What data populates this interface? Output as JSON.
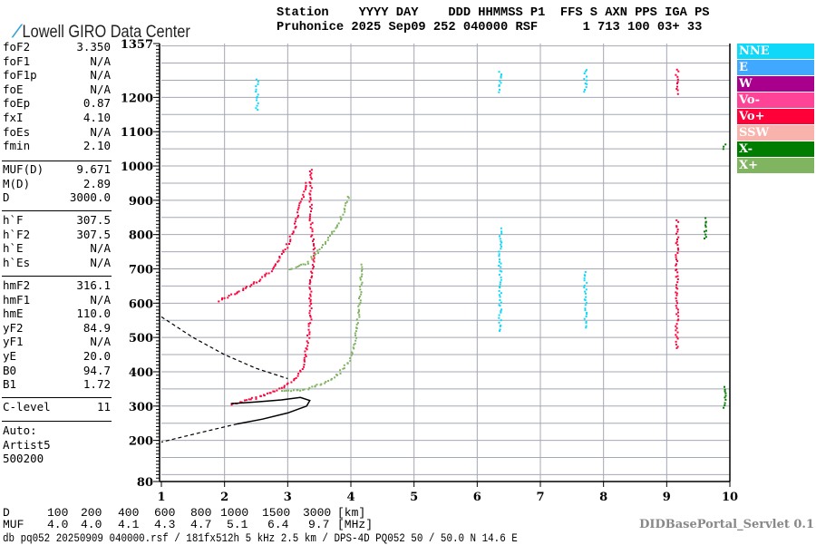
{
  "header": {
    "logo_text": "Lowell GIRO Data Center",
    "line1": "Station    YYYY DAY    DDD HHMMSS P1  FFS S AXN PPS IGA PS",
    "line2": "Pruhonice 2025 Sep09 252 040000 RSF      1 713 100 03+ 33"
  },
  "params": {
    "group1": [
      {
        "k": "foF2",
        "v": "3.350"
      },
      {
        "k": "foF1",
        "v": "N/A"
      },
      {
        "k": "foF1p",
        "v": "N/A"
      },
      {
        "k": "foE",
        "v": "N/A"
      },
      {
        "k": "foEp",
        "v": "0.87"
      },
      {
        "k": "fxI",
        "v": "4.10"
      },
      {
        "k": "foEs",
        "v": "N/A"
      },
      {
        "k": "fmin",
        "v": "2.10"
      }
    ],
    "group2": [
      {
        "k": "MUF(D)",
        "v": "9.671"
      },
      {
        "k": "M(D)",
        "v": "2.89"
      },
      {
        "k": "D",
        "v": "3000.0"
      }
    ],
    "group3": [
      {
        "k": "h`F",
        "v": "307.5"
      },
      {
        "k": "h`F2",
        "v": "307.5"
      },
      {
        "k": "h`E",
        "v": "N/A"
      },
      {
        "k": "h`Es",
        "v": "N/A"
      }
    ],
    "group4": [
      {
        "k": "hmF2",
        "v": "316.1"
      },
      {
        "k": "hmF1",
        "v": "N/A"
      },
      {
        "k": "hmE",
        "v": "110.0"
      },
      {
        "k": "yF2",
        "v": "84.9"
      },
      {
        "k": "yF1",
        "v": "N/A"
      },
      {
        "k": "yE",
        "v": "20.0"
      },
      {
        "k": "B0",
        "v": "94.7"
      },
      {
        "k": "B1",
        "v": "1.72"
      }
    ],
    "group5": [
      {
        "k": "C-level",
        "v": "11"
      }
    ],
    "auto": [
      "Auto:",
      "Artist5",
      "500200"
    ]
  },
  "legend": [
    {
      "label": "NNE",
      "color": "#10d8f8"
    },
    {
      "label": "E",
      "color": "#40a8ff"
    },
    {
      "label": "W",
      "color": "#a8008c"
    },
    {
      "label": "Vo-",
      "color": "#ff4498"
    },
    {
      "label": "Vo+",
      "color": "#ff0038"
    },
    {
      "label": "SSW",
      "color": "#f8b4ac"
    },
    {
      "label": "X-",
      "color": "#007c00"
    },
    {
      "label": "X+",
      "color": "#80b460"
    }
  ],
  "muf_table": {
    "d_label": "D",
    "d_values": [
      "100",
      "200",
      "400",
      "600",
      "800",
      "1000",
      "1500",
      "3000"
    ],
    "d_unit": "[km]",
    "muf_label": "MUF",
    "muf_values": [
      "4.0",
      "4.0",
      "4.1",
      "4.3",
      "4.7",
      "5.1",
      "6.4",
      "9.7"
    ],
    "muf_unit": "[MHz]"
  },
  "footer": {
    "servlet": "DIDBasePortal_Servlet 0.1",
    "info": "db pq052 20250909 040000.rsf / 181fx512h 5 kHz 2.5 km / DPS-4D PQ052 50 / 50.0 N 14.6 E"
  },
  "chart_data": {
    "type": "scatter",
    "xlabel": "",
    "ylabel": "",
    "xlim": [
      1,
      10
    ],
    "ylim": [
      80,
      1357
    ],
    "xticks": [
      "1",
      "2",
      "3",
      "4",
      "5",
      "6",
      "7",
      "8",
      "9",
      "10"
    ],
    "yticks": [
      "80",
      "200",
      "300",
      "400",
      "500",
      "600",
      "700",
      "800",
      "900",
      "1000",
      "1100",
      "1200",
      "1357"
    ],
    "grid": true,
    "legend_position": "right",
    "series": [
      {
        "name": "Vo+",
        "color": "#ff0038",
        "traces": [
          [
            [
              2.1,
              307
            ],
            [
              2.4,
              322
            ],
            [
              2.7,
              340
            ],
            [
              2.95,
              360
            ],
            [
              3.15,
              390
            ],
            [
              3.25,
              430
            ],
            [
              3.3,
              480
            ],
            [
              3.35,
              560
            ],
            [
              3.35,
              650
            ],
            [
              3.4,
              750
            ],
            [
              3.35,
              850
            ],
            [
              3.35,
              950
            ],
            [
              3.35,
              1000
            ]
          ],
          [
            [
              1.9,
              610
            ],
            [
              2.2,
              635
            ],
            [
              2.5,
              665
            ],
            [
              2.75,
              700
            ],
            [
              2.95,
              760
            ],
            [
              3.1,
              820
            ],
            [
              3.2,
              900
            ],
            [
              3.3,
              960
            ]
          ],
          [
            [
              9.15,
              470
            ],
            [
              9.15,
              850
            ]
          ],
          [
            [
              9.15,
              1215
            ],
            [
              9.15,
              1290
            ]
          ]
        ]
      },
      {
        "name": "X+",
        "color": "#80b460",
        "traces": [
          [
            [
              2.9,
              345
            ],
            [
              3.2,
              348
            ],
            [
              3.5,
              365
            ],
            [
              3.75,
              390
            ],
            [
              3.95,
              430
            ],
            [
              4.05,
              480
            ],
            [
              4.1,
              560
            ],
            [
              4.15,
              650
            ],
            [
              4.15,
              720
            ]
          ],
          [
            [
              3.0,
              700
            ],
            [
              3.3,
              720
            ],
            [
              3.55,
              770
            ],
            [
              3.75,
              820
            ],
            [
              3.9,
              880
            ],
            [
              3.95,
              920
            ]
          ]
        ]
      },
      {
        "name": "NNE",
        "color": "#10d8f8",
        "traces": [
          [
            [
              6.35,
              520
            ],
            [
              6.35,
              825
            ]
          ],
          [
            [
              6.35,
              1220
            ],
            [
              6.35,
              1285
            ]
          ],
          [
            [
              2.5,
              1165
            ],
            [
              2.5,
              1260
            ]
          ],
          [
            [
              7.7,
              1220
            ],
            [
              7.7,
              1290
            ]
          ],
          [
            [
              7.7,
              530
            ],
            [
              7.7,
              700
            ]
          ]
        ]
      },
      {
        "name": "X-",
        "color": "#007c00",
        "traces": [
          [
            [
              9.9,
              300
            ],
            [
              9.9,
              365
            ]
          ],
          [
            [
              9.9,
              1050
            ],
            [
              9.9,
              1070
            ]
          ],
          [
            [
              9.6,
              790
            ],
            [
              9.6,
              855
            ]
          ]
        ]
      }
    ],
    "profile": {
      "solid": [
        [
          2.1,
          307
        ],
        [
          2.5,
          312
        ],
        [
          2.9,
          318
        ],
        [
          3.2,
          325
        ],
        [
          3.35,
          316
        ],
        [
          3.3,
          300
        ],
        [
          3.0,
          280
        ],
        [
          2.6,
          262
        ],
        [
          2.2,
          248
        ]
      ],
      "dashed_lower": [
        [
          2.2,
          248
        ],
        [
          1.6,
          222
        ],
        [
          1.0,
          195
        ]
      ],
      "dashed_upper": [
        [
          1.0,
          560
        ],
        [
          1.5,
          500
        ],
        [
          2.0,
          450
        ],
        [
          2.5,
          410
        ],
        [
          3.0,
          380
        ]
      ]
    }
  }
}
